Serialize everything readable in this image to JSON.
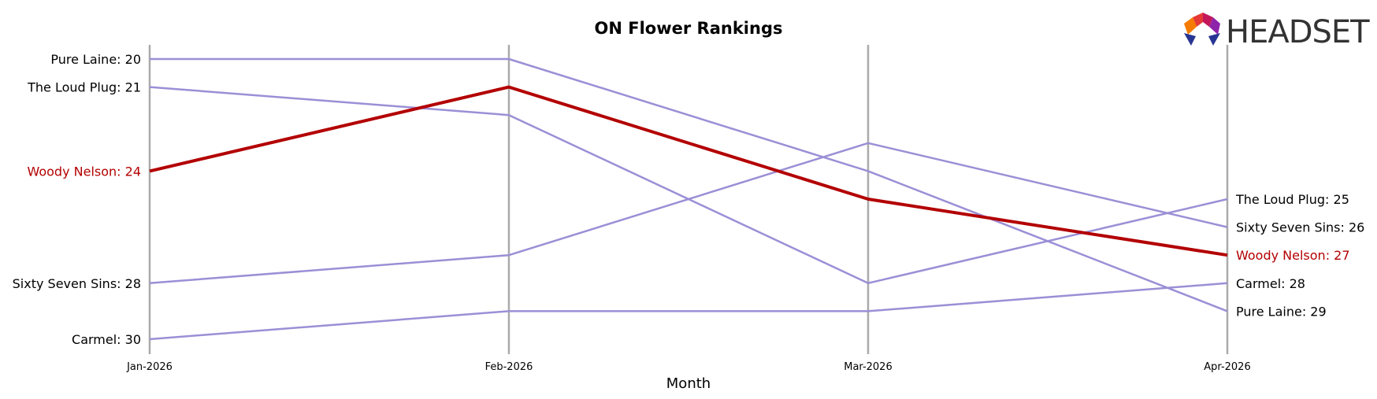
{
  "chart_data": {
    "type": "line",
    "title": "ON Flower Rankings",
    "xlabel": "Month",
    "ylabel": "",
    "x": [
      "Jan-2026",
      "Feb-2026",
      "Mar-2026",
      "Apr-2026"
    ],
    "ylim": [
      31,
      19
    ],
    "y_inverted": true,
    "grid": false,
    "highlight_color": "#b30000",
    "base_color": "#9b8fd6",
    "axis_color": "#aaaaaa",
    "highlight_series": "Woody Nelson",
    "series": [
      {
        "name": "Pure Laine",
        "values": [
          20,
          20,
          24,
          29
        ]
      },
      {
        "name": "The Loud Plug",
        "values": [
          21,
          22,
          28,
          25
        ]
      },
      {
        "name": "Woody Nelson",
        "values": [
          24,
          21,
          25,
          27
        ]
      },
      {
        "name": "Sixty Seven Sins",
        "values": [
          28,
          27,
          23,
          26
        ]
      },
      {
        "name": "Carmel",
        "values": [
          30,
          29,
          29,
          28
        ]
      }
    ]
  },
  "logo": {
    "text": "HEADSET"
  }
}
